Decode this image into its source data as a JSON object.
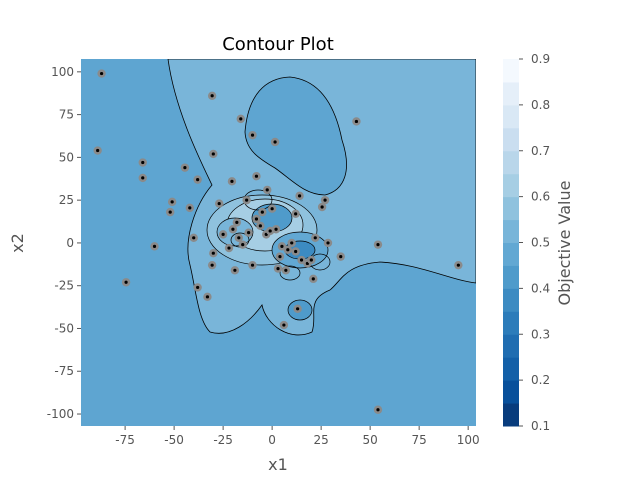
{
  "chart_data": {
    "type": "contour",
    "title": "Contour Plot",
    "xlabel": "x1",
    "ylabel": "x2",
    "xlim": [
      -97.5,
      104
    ],
    "ylim": [
      -107,
      107.5
    ],
    "xticks": [
      -75,
      -50,
      -25,
      0,
      25,
      50,
      75,
      100
    ],
    "yticks": [
      -100,
      -75,
      -50,
      -25,
      0,
      25,
      50,
      75,
      100
    ],
    "grid": false,
    "colorbar": {
      "label": "Objective Value",
      "colormap": "Blues",
      "range": [
        0.1,
        0.9
      ],
      "ticks": [
        0.1,
        0.2,
        0.3,
        0.4,
        0.5,
        0.6,
        0.7,
        0.8,
        0.9
      ],
      "level_colors": [
        "#083c7d",
        "#08509b",
        "#1360a8",
        "#1f6db1",
        "#2c7cba",
        "#3c8bc2",
        "#4f9bcb",
        "#62a8d3",
        "#78b5d9",
        "#8fc2de",
        "#a6cee4",
        "#b9d6ea",
        "#cadef0",
        "#d9e8f5",
        "#e5eff9",
        "#f4f9fe"
      ]
    },
    "points": [
      [
        -87,
        99
      ],
      [
        -30.6,
        86
      ],
      [
        -16,
        72.5
      ],
      [
        43,
        71
      ],
      [
        -89,
        54
      ],
      [
        -10,
        63
      ],
      [
        1.5,
        59
      ],
      [
        -30,
        52
      ],
      [
        -66,
        47
      ],
      [
        -66,
        38
      ],
      [
        -44.5,
        44
      ],
      [
        -38,
        37
      ],
      [
        -20.5,
        36
      ],
      [
        -8,
        39
      ],
      [
        -51,
        24
      ],
      [
        -52,
        18
      ],
      [
        -42,
        20.5
      ],
      [
        -27,
        23
      ],
      [
        -13,
        25
      ],
      [
        -2.5,
        31
      ],
      [
        14,
        27.5
      ],
      [
        27,
        25
      ],
      [
        25.5,
        21
      ],
      [
        12,
        17
      ],
      [
        -40,
        3
      ],
      [
        -60,
        -2
      ],
      [
        -74.5,
        -23
      ],
      [
        -30.6,
        -13
      ],
      [
        -19,
        -16
      ],
      [
        -38,
        -26
      ],
      [
        -33,
        -31.5
      ],
      [
        6,
        -48
      ],
      [
        13,
        -38.5
      ],
      [
        35,
        -8
      ],
      [
        54,
        -1
      ],
      [
        95,
        -13
      ],
      [
        54,
        -97.5
      ],
      [
        21,
        -21
      ],
      [
        28.5,
        0
      ],
      [
        22,
        3
      ],
      [
        -20,
        8
      ],
      [
        -25,
        5
      ],
      [
        -18,
        12
      ],
      [
        -12,
        6
      ],
      [
        -8,
        14
      ],
      [
        -5,
        18
      ],
      [
        0,
        20
      ],
      [
        2,
        8
      ],
      [
        -3,
        5
      ],
      [
        5,
        -2
      ],
      [
        8,
        -4
      ],
      [
        10,
        0
      ],
      [
        12,
        -5
      ],
      [
        15,
        -10
      ],
      [
        18,
        -12
      ],
      [
        20,
        -10
      ],
      [
        -10,
        -13
      ],
      [
        3,
        -15
      ],
      [
        7,
        -16
      ],
      [
        -30,
        -6
      ],
      [
        -22,
        -3
      ],
      [
        -15,
        -1
      ],
      [
        -6,
        10
      ],
      [
        -1,
        7
      ],
      [
        4,
        -8
      ],
      [
        -17,
        3
      ]
    ]
  }
}
